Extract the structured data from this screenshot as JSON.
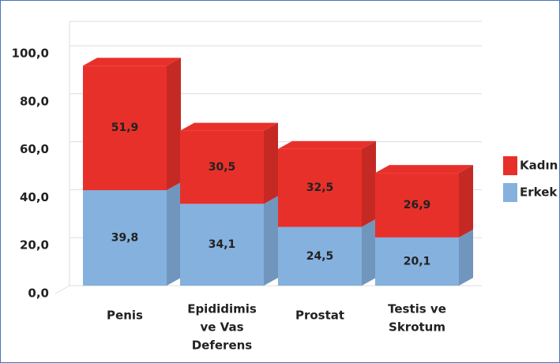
{
  "chart_data": {
    "type": "bar",
    "stacked": true,
    "categories": [
      [
        "Penis"
      ],
      [
        "Epididimis",
        "ve Vas",
        "Deferens"
      ],
      [
        "Prostat"
      ],
      [
        "Testis ve",
        "Skrotum"
      ]
    ],
    "series": [
      {
        "name": "Erkek",
        "color": "#85b1de",
        "values": [
          39.8,
          34.1,
          24.5,
          20.1
        ],
        "value_labels": [
          "39,8",
          "34,1",
          "24,5",
          "20,1"
        ]
      },
      {
        "name": "Kadın",
        "color": "#e8302a",
        "values": [
          51.9,
          30.5,
          32.5,
          26.9
        ],
        "value_labels": [
          "51,9",
          "30,5",
          "32,5",
          "26,9"
        ]
      }
    ],
    "ylim": [
      0,
      100
    ],
    "yticks": [
      {
        "value": 0,
        "label": "0,0"
      },
      {
        "value": 20,
        "label": "20,0"
      },
      {
        "value": 40,
        "label": "40,0"
      },
      {
        "value": 60,
        "label": "60,0"
      },
      {
        "value": 80,
        "label": "80,0"
      },
      {
        "value": 100,
        "label": "100,0"
      }
    ],
    "grid": true,
    "legend": "right"
  }
}
